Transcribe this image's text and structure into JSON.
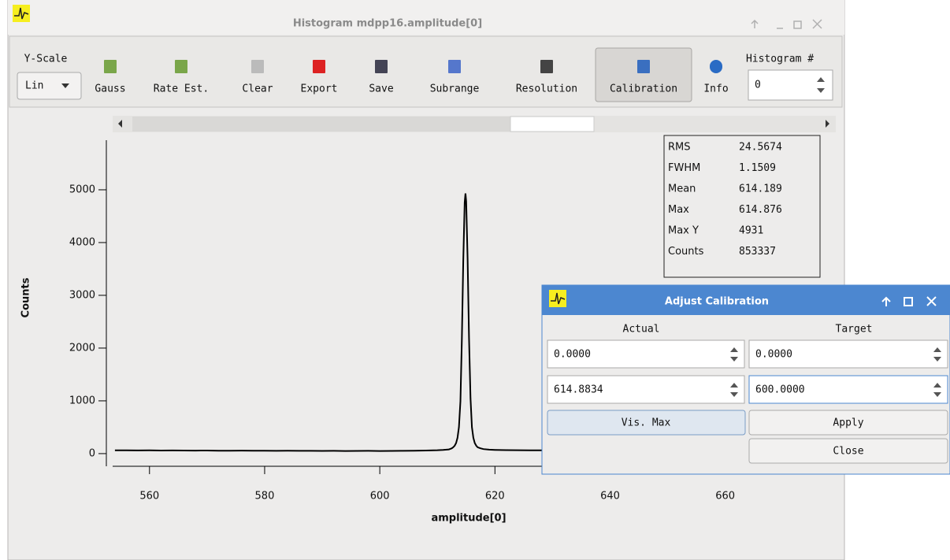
{
  "window": {
    "title": "Histogram mdpp16.amplitude[0]"
  },
  "toolbar": {
    "y_scale_label": "Y-Scale",
    "y_scale_value": "Lin",
    "buttons": [
      "Gauss",
      "Rate Est.",
      "Clear",
      "Export",
      "Save",
      "Subrange",
      "Resolution",
      "Calibration",
      "Info"
    ],
    "histogram_label": "Histogram #",
    "histogram_value": "0"
  },
  "stats": [
    [
      "RMS",
      "24.5674"
    ],
    [
      "FWHM",
      "1.1509"
    ],
    [
      "Mean",
      "614.189"
    ],
    [
      "Max",
      "614.876"
    ],
    [
      "Max Y",
      "4931"
    ],
    [
      "Counts",
      "853337"
    ]
  ],
  "chart_data": {
    "type": "line",
    "x_label": "amplitude[0]",
    "y_label": "Counts",
    "color": "#000000",
    "x": [
      554,
      556,
      558,
      560,
      562,
      564,
      566,
      568,
      570,
      572,
      574,
      576,
      578,
      580,
      582,
      584,
      586,
      588,
      590,
      592,
      594,
      596,
      598,
      600,
      602,
      604,
      606,
      608,
      610,
      611,
      612,
      612.25,
      612.5,
      612.75,
      613,
      613.25,
      613.5,
      613.75,
      614,
      614.25,
      614.5,
      614.75,
      614.875,
      615,
      615.25,
      615.5,
      615.75,
      616,
      616.25,
      616.5,
      616.75,
      617,
      617.5,
      618,
      619,
      620,
      622,
      624,
      626,
      628,
      630
    ],
    "values": [
      62,
      63,
      60,
      61,
      59,
      60,
      58,
      57,
      58,
      56,
      55,
      57,
      54,
      55,
      53,
      54,
      52,
      53,
      51,
      52,
      50,
      51,
      52,
      50,
      51,
      53,
      55,
      58,
      65,
      70,
      80,
      90,
      100,
      120,
      150,
      200,
      300,
      500,
      990,
      2150,
      3650,
      4760,
      4931,
      4780,
      3700,
      2200,
      1050,
      500,
      300,
      200,
      150,
      120,
      100,
      85,
      75,
      70,
      66,
      64,
      62,
      61,
      60
    ],
    "xlim": [
      553.6,
      676.6
    ],
    "xticks": [
      560,
      580,
      600,
      620,
      640,
      660
    ],
    "ylim": [
      -240,
      5940
    ],
    "yticks": [
      0,
      1000,
      2000,
      3000,
      4000,
      5000
    ]
  },
  "dialog": {
    "title": "Adjust Calibration",
    "actual_label": "Actual",
    "target_label": "Target",
    "actual": [
      "0.0000",
      "614.8834"
    ],
    "target": [
      "0.0000",
      "600.0000"
    ],
    "buttons": {
      "vis_max": "Vis. Max",
      "apply": "Apply",
      "close": "Close"
    }
  }
}
